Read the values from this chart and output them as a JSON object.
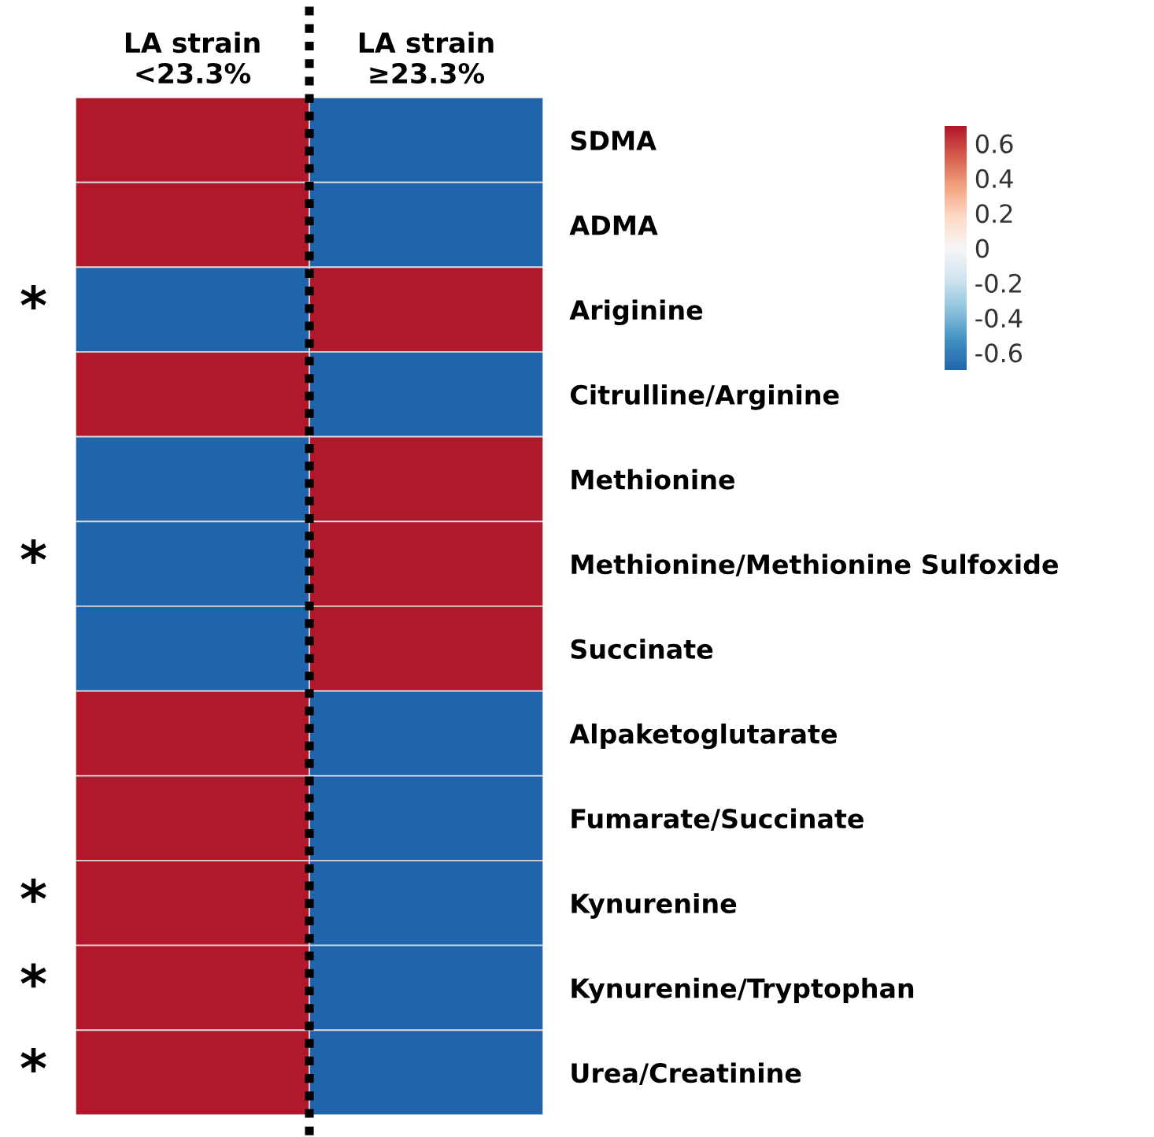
{
  "chart_data": {
    "type": "heatmap",
    "categories": [
      "LA strain\n<23.3%",
      "LA strain\n≥23.3%"
    ],
    "y_categories": [
      "SDMA",
      "ADMA",
      "Ariginine",
      "Citrulline/Arginine",
      "Methionine",
      "Methionine/Methionine Sulfoxide",
      "Succinate",
      "Alpaketoglutarate",
      "Fumarate/Succinate",
      "Kynurenine",
      "Kynurenine/Tryptophan",
      "Urea/Creatinine"
    ],
    "cells": [
      [
        0.7,
        -0.7
      ],
      [
        0.7,
        -0.7
      ],
      [
        -0.7,
        0.7
      ],
      [
        0.7,
        -0.7
      ],
      [
        -0.7,
        0.7
      ],
      [
        -0.7,
        0.7
      ],
      [
        -0.7,
        0.7
      ],
      [
        0.7,
        -0.7
      ],
      [
        0.7,
        -0.7
      ],
      [
        0.7,
        -0.7
      ],
      [
        0.7,
        -0.7
      ],
      [
        0.7,
        -0.7
      ]
    ],
    "clim": [
      -0.7,
      0.7
    ],
    "cticks": [
      0.6,
      0.4,
      0.2,
      0,
      -0.2,
      -0.4,
      -0.6
    ],
    "y2_categories": [
      null,
      null,
      "*",
      null,
      null,
      "*",
      null,
      null,
      null,
      "*",
      "*",
      "*"
    ]
  }
}
